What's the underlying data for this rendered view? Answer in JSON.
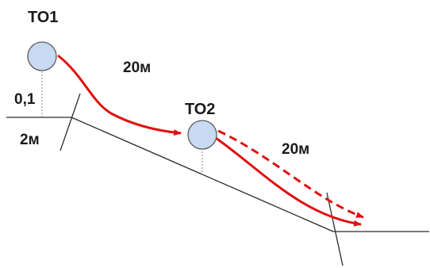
{
  "labels": {
    "to1": "ТО1",
    "to2": "ТО2",
    "distance_1": "20м",
    "distance_2": "20м",
    "height": "0,1",
    "width": "2м"
  },
  "colors": {
    "ball_fill": "#c8daf2",
    "ball_stroke": "#5a5a5a",
    "arrow": "#e01010",
    "line": "#2b2b2b",
    "guide": "#8a8a8a",
    "text": "#1a1a1a"
  }
}
